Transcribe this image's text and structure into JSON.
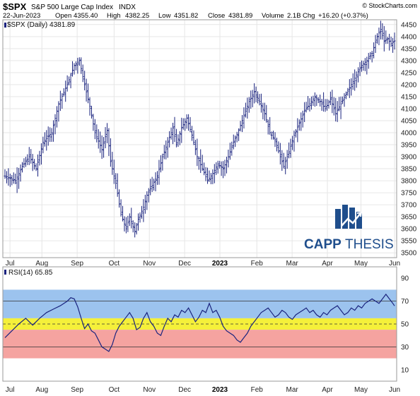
{
  "header": {
    "symbol": "$SPX",
    "name": "S&P 500 Large Cap Index",
    "exchange": "INDX",
    "credit": "© StockCharts.com",
    "date": "22-Jun-2023",
    "open_label": "Open",
    "open": "4355.40",
    "high_label": "High",
    "high": "4382.25",
    "low_label": "Low",
    "low": "4351.82",
    "close_label": "Close",
    "close": "4381.89",
    "volume_label": "Volume",
    "volume": "2.1B",
    "chg_label": "Chg",
    "chg": "+16.20 (+0.37%)"
  },
  "logo": {
    "text_a": "CAPP",
    "text_b": "THESIS",
    "color": "#1f4e8c"
  },
  "colors": {
    "price_bars": "#1a237e",
    "rsi_line": "#1a237e",
    "band_overbought": "#9cc3ee",
    "band_neutral": "#f5f03a",
    "band_oversold": "#f5a3a0",
    "grid": "#e6e6e6"
  },
  "chart_data": [
    {
      "type": "ohlc",
      "legend": "$SPX (Daily) 4381.89",
      "x_labels": [
        "Jul",
        "Aug",
        "Sep",
        "Oct",
        "Nov",
        "Dec",
        "2023",
        "Feb",
        "Mar",
        "Apr",
        "May",
        "Jun"
      ],
      "ylim": [
        3480,
        4470
      ],
      "y_ticks": [
        3500,
        3550,
        3600,
        3650,
        3700,
        3750,
        3800,
        3850,
        3900,
        3950,
        4000,
        4050,
        4100,
        4150,
        4200,
        4250,
        4300,
        4350,
        4400,
        4450
      ],
      "close_path": [
        [
          0,
          3820
        ],
        [
          6,
          3800
        ],
        [
          10,
          3860
        ],
        [
          14,
          3900
        ],
        [
          18,
          3850
        ],
        [
          22,
          3960
        ],
        [
          27,
          4000
        ],
        [
          31,
          4120
        ],
        [
          36,
          4200
        ],
        [
          40,
          4280
        ],
        [
          43,
          4300
        ],
        [
          46,
          4200
        ],
        [
          49,
          4110
        ],
        [
          52,
          4000
        ],
        [
          56,
          3930
        ],
        [
          59,
          4010
        ],
        [
          61,
          3880
        ],
        [
          64,
          3790
        ],
        [
          67,
          3660
        ],
        [
          70,
          3600
        ],
        [
          72,
          3650
        ],
        [
          75,
          3590
        ],
        [
          77,
          3640
        ],
        [
          80,
          3690
        ],
        [
          82,
          3740
        ],
        [
          85,
          3780
        ],
        [
          88,
          3820
        ],
        [
          91,
          3900
        ],
        [
          94,
          3960
        ],
        [
          97,
          4020
        ],
        [
          99,
          3950
        ],
        [
          102,
          4020
        ],
        [
          105,
          4060
        ],
        [
          108,
          3990
        ],
        [
          111,
          3900
        ],
        [
          114,
          3850
        ],
        [
          117,
          3800
        ],
        [
          120,
          3830
        ],
        [
          123,
          3870
        ],
        [
          126,
          3850
        ],
        [
          129,
          3900
        ],
        [
          132,
          3960
        ],
        [
          135,
          4010
        ],
        [
          138,
          4070
        ],
        [
          141,
          4130
        ],
        [
          144,
          4170
        ],
        [
          147,
          4130
        ],
        [
          150,
          4080
        ],
        [
          153,
          4000
        ],
        [
          156,
          3970
        ],
        [
          159,
          3900
        ],
        [
          161,
          3860
        ],
        [
          164,
          3920
        ],
        [
          167,
          3990
        ],
        [
          170,
          4040
        ],
        [
          173,
          4090
        ],
        [
          176,
          4120
        ],
        [
          179,
          4150
        ],
        [
          182,
          4130
        ],
        [
          185,
          4100
        ],
        [
          188,
          4140
        ],
        [
          191,
          4080
        ],
        [
          194,
          4120
        ],
        [
          197,
          4160
        ],
        [
          200,
          4200
        ],
        [
          203,
          4240
        ],
        [
          206,
          4280
        ],
        [
          209,
          4300
        ],
        [
          212,
          4330
        ],
        [
          215,
          4400
        ],
        [
          217,
          4430
        ],
        [
          219,
          4380
        ],
        [
          221,
          4390
        ],
        [
          223,
          4370
        ],
        [
          225,
          4381.89
        ]
      ]
    },
    {
      "type": "line",
      "legend": "RSI(14) 65.85",
      "series": [],
      "ylim": [
        0,
        100
      ],
      "y_ticks": [
        10,
        30,
        50,
        70,
        90
      ],
      "bands": [
        [
          55,
          80
        ],
        [
          45,
          55
        ],
        [
          20,
          45
        ]
      ],
      "levels": [
        70,
        50,
        30
      ],
      "x_labels": [
        "Jul",
        "Aug",
        "Sep",
        "Oct",
        "Nov",
        "Dec",
        "2023",
        "Feb",
        "Mar",
        "Apr",
        "May",
        "Jun"
      ],
      "path": [
        [
          0,
          38
        ],
        [
          4,
          44
        ],
        [
          8,
          50
        ],
        [
          12,
          55
        ],
        [
          16,
          49
        ],
        [
          20,
          55
        ],
        [
          24,
          60
        ],
        [
          28,
          63
        ],
        [
          32,
          66
        ],
        [
          36,
          70
        ],
        [
          38,
          73
        ],
        [
          40,
          72
        ],
        [
          42,
          65
        ],
        [
          44,
          55
        ],
        [
          46,
          46
        ],
        [
          48,
          50
        ],
        [
          50,
          44
        ],
        [
          52,
          42
        ],
        [
          54,
          36
        ],
        [
          56,
          30
        ],
        [
          58,
          28
        ],
        [
          60,
          26
        ],
        [
          62,
          32
        ],
        [
          64,
          42
        ],
        [
          66,
          48
        ],
        [
          68,
          52
        ],
        [
          70,
          56
        ],
        [
          72,
          60
        ],
        [
          74,
          55
        ],
        [
          76,
          45
        ],
        [
          78,
          47
        ],
        [
          80,
          55
        ],
        [
          82,
          60
        ],
        [
          84,
          52
        ],
        [
          86,
          48
        ],
        [
          88,
          42
        ],
        [
          90,
          40
        ],
        [
          92,
          48
        ],
        [
          94,
          55
        ],
        [
          96,
          52
        ],
        [
          98,
          58
        ],
        [
          100,
          56
        ],
        [
          102,
          62
        ],
        [
          104,
          60
        ],
        [
          106,
          64
        ],
        [
          108,
          58
        ],
        [
          110,
          52
        ],
        [
          112,
          56
        ],
        [
          114,
          62
        ],
        [
          116,
          60
        ],
        [
          118,
          68
        ],
        [
          120,
          60
        ],
        [
          122,
          62
        ],
        [
          124,
          56
        ],
        [
          126,
          48
        ],
        [
          128,
          44
        ],
        [
          130,
          42
        ],
        [
          132,
          40
        ],
        [
          134,
          36
        ],
        [
          136,
          34
        ],
        [
          138,
          38
        ],
        [
          140,
          42
        ],
        [
          142,
          48
        ],
        [
          144,
          52
        ],
        [
          146,
          56
        ],
        [
          148,
          60
        ],
        [
          150,
          62
        ],
        [
          152,
          64
        ],
        [
          154,
          60
        ],
        [
          156,
          56
        ],
        [
          158,
          58
        ],
        [
          160,
          62
        ],
        [
          162,
          60
        ],
        [
          164,
          56
        ],
        [
          166,
          54
        ],
        [
          168,
          58
        ],
        [
          170,
          60
        ],
        [
          172,
          62
        ],
        [
          174,
          64
        ],
        [
          176,
          60
        ],
        [
          178,
          62
        ],
        [
          180,
          58
        ],
        [
          182,
          56
        ],
        [
          184,
          60
        ],
        [
          186,
          58
        ],
        [
          188,
          62
        ],
        [
          190,
          64
        ],
        [
          192,
          66
        ],
        [
          194,
          62
        ],
        [
          196,
          58
        ],
        [
          198,
          60
        ],
        [
          200,
          64
        ],
        [
          202,
          62
        ],
        [
          204,
          66
        ],
        [
          206,
          64
        ],
        [
          208,
          68
        ],
        [
          210,
          70
        ],
        [
          212,
          72
        ],
        [
          214,
          70
        ],
        [
          216,
          68
        ],
        [
          218,
          72
        ],
        [
          220,
          76
        ],
        [
          222,
          72
        ],
        [
          224,
          68
        ],
        [
          225,
          65.85
        ]
      ]
    }
  ]
}
